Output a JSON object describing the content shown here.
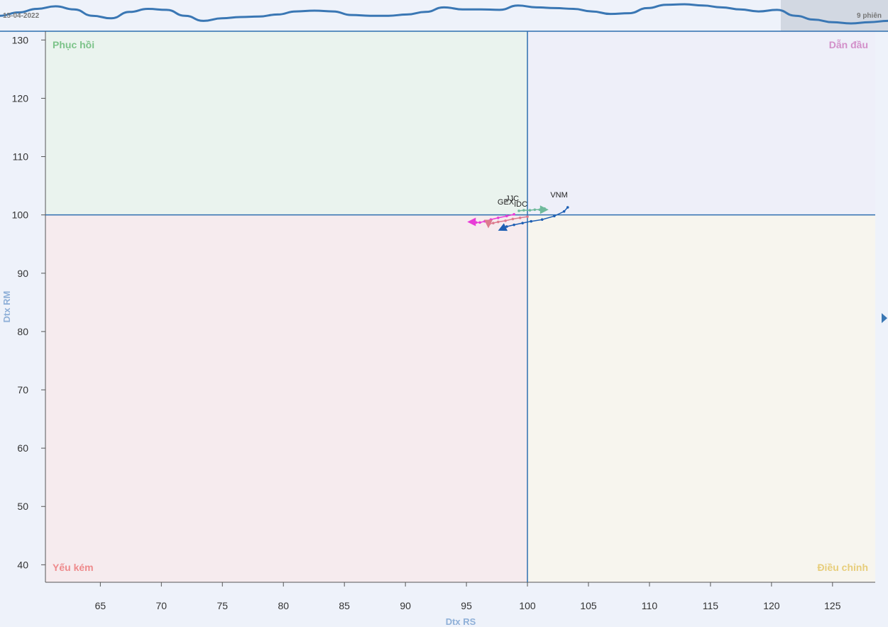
{
  "navigator": {
    "date_label": "15-04-2022",
    "session_label": "9 phiên",
    "series": [
      0.55,
      0.68,
      0.82,
      0.92,
      0.8,
      0.55,
      0.45,
      0.7,
      0.82,
      0.78,
      0.55,
      0.35,
      0.45,
      0.5,
      0.52,
      0.6,
      0.72,
      0.75,
      0.72,
      0.58,
      0.55,
      0.55,
      0.6,
      0.7,
      0.88,
      0.8,
      0.8,
      0.78,
      0.95,
      0.88,
      0.85,
      0.82,
      0.72,
      0.62,
      0.65,
      0.85,
      0.98,
      1.0,
      0.95,
      0.88,
      0.8,
      0.72,
      0.78,
      0.55,
      0.4,
      0.3,
      0.25,
      0.3,
      0.35
    ],
    "expand_icon": "triangle-right-icon"
  },
  "colors": {
    "quad_tl": "#eaf3ee",
    "quad_tr": "#eeeff9",
    "quad_bl": "#f6ebee",
    "quad_br": "#f7f5ee",
    "label_tl": "#7cc389",
    "label_tr": "#d28fc9",
    "label_bl": "#ee8a8c",
    "label_br": "#e7cd7a",
    "axis": "#2f6fb0",
    "nav_line": "#3a77b4",
    "nav_range": "#d2d8e2"
  },
  "chart_data": {
    "type": "scatter",
    "xlabel": "Dtx RS",
    "ylabel": "Dtx RM",
    "xlim": [
      60.5,
      128.5
    ],
    "ylim": [
      37,
      131.5
    ],
    "xticks": [
      65,
      70,
      75,
      80,
      85,
      90,
      95,
      100,
      105,
      110,
      115,
      120,
      125
    ],
    "yticks": [
      40,
      50,
      60,
      70,
      80,
      90,
      100,
      110,
      120,
      130
    ],
    "center": [
      100,
      100
    ],
    "quadrants": {
      "top_left": "Phục hồi",
      "top_right": "Dẫn đầu",
      "bottom_left": "Yếu kém",
      "bottom_right": "Điều chỉnh"
    },
    "series": [
      {
        "name": "VNM",
        "color": "#1e5fb3",
        "x": [
          103.3,
          103.0,
          102.2,
          101.2,
          100.3,
          99.6,
          98.9,
          98.3,
          97.8
        ],
        "y": [
          101.3,
          100.6,
          99.8,
          99.2,
          98.9,
          98.6,
          98.3,
          98.0,
          97.5
        ]
      },
      {
        "name": "JJC",
        "color": "#6fba9c",
        "x": [
          99.3,
          99.7,
          100.2,
          100.6,
          101.0,
          101.3,
          101.4,
          101.2,
          101.5
        ],
        "y": [
          100.7,
          100.8,
          100.8,
          100.9,
          100.9,
          101.0,
          101.1,
          100.9,
          100.9
        ]
      },
      {
        "name": "GEX",
        "color": "#e83dd7",
        "x": [
          98.9,
          98.3,
          97.6,
          97.0,
          96.5,
          96.1,
          95.8,
          95.6,
          95.3
        ],
        "y": [
          100.1,
          99.8,
          99.5,
          99.2,
          98.9,
          98.7,
          98.7,
          98.8,
          98.8
        ]
      },
      {
        "name": "IDC",
        "color": "#dd7b8e",
        "x": [
          100.0,
          99.4,
          98.8,
          98.2,
          97.6,
          97.2,
          96.9,
          96.8,
          96.8
        ],
        "y": [
          99.7,
          99.5,
          99.3,
          99.0,
          98.8,
          98.6,
          98.5,
          98.4,
          98.2
        ]
      }
    ]
  }
}
